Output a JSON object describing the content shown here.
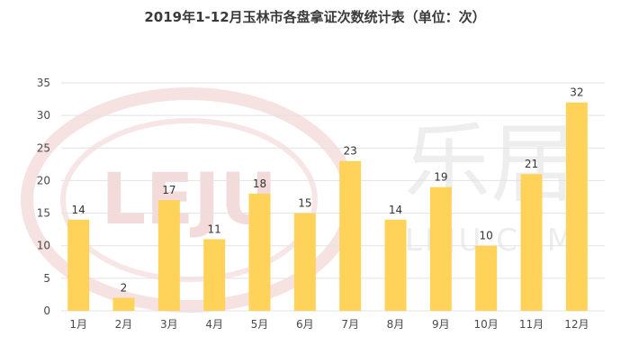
{
  "chart_data": {
    "type": "bar",
    "title": "2019年1-12月玉林市各盘拿证次数统计表（单位：次）",
    "categories": [
      "1月",
      "2月",
      "3月",
      "4月",
      "5月",
      "6月",
      "7月",
      "8月",
      "9月",
      "10月",
      "11月",
      "12月"
    ],
    "values": [
      14,
      2,
      17,
      11,
      18,
      15,
      23,
      14,
      19,
      10,
      21,
      32
    ],
    "ylim": [
      0,
      35
    ],
    "yticks": [
      0,
      5,
      10,
      15,
      20,
      25,
      30,
      35
    ],
    "grid": true,
    "legend": "none",
    "bar_color": "#ffd35a",
    "grid_color": "#e3e3e3"
  },
  "watermark": {
    "logo_text": "LEJU",
    "brand_cn": "乐居",
    "brand_en": "LEJU.COM"
  }
}
